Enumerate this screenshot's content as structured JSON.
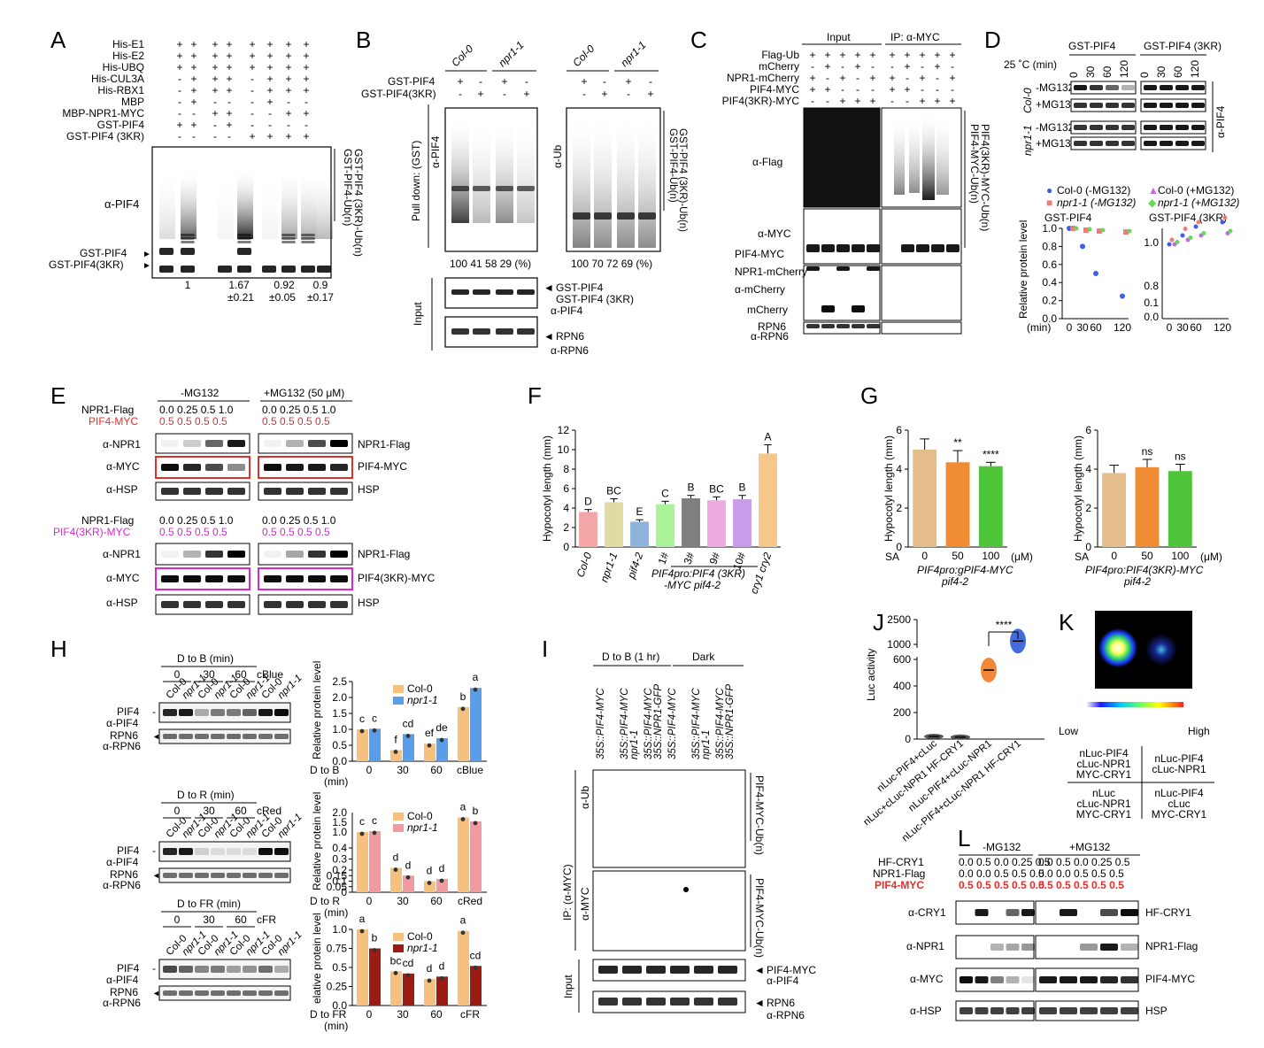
{
  "panels": {
    "A": "A",
    "B": "B",
    "C": "C",
    "D": "D",
    "E": "E",
    "F": "F",
    "G": "G",
    "H": "H",
    "I": "I",
    "J": "J",
    "K": "K",
    "L": "L"
  },
  "A": {
    "rows": [
      "His-E1",
      "His-E2",
      "His-UBQ",
      "His-CUL3A",
      "His-RBX1",
      "MBP",
      "MBP-NPR1-MYC",
      "GST-PIF4",
      "GST-PIF4 (3KR)"
    ],
    "signs": [
      [
        "+",
        "+",
        "+",
        "+",
        "+",
        "+",
        "+",
        "+"
      ],
      [
        "+",
        "+",
        "+",
        "+",
        "+",
        "+",
        "+",
        "+"
      ],
      [
        "+",
        "+",
        "+",
        "+",
        "+",
        "+",
        "+",
        "+"
      ],
      [
        "-",
        "+",
        "+",
        "+",
        "-",
        "+",
        "+",
        "+"
      ],
      [
        "-",
        "+",
        "+",
        "+",
        "-",
        "+",
        "+",
        "+"
      ],
      [
        "-",
        "+",
        "-",
        "-",
        "-",
        "+",
        "-",
        "-"
      ],
      [
        "-",
        "-",
        "+",
        "+",
        "-",
        "-",
        "+",
        "+"
      ],
      [
        "+",
        "+",
        "-",
        "+",
        "-",
        "-",
        "-",
        "-"
      ],
      [
        "-",
        "-",
        "-",
        "-",
        "+",
        "+",
        "+",
        "+"
      ]
    ],
    "ab": "α-PIF4",
    "band1": "GST-PIF4",
    "band2": "GST-PIF4(3KR)",
    "side1": "GST-PIF4-Ub(n)",
    "side2": "GST-PIF4 (3KR)-Ub(n)",
    "q1": "1",
    "q2": "1.67",
    "q2b": "±0.21",
    "q3": "0.92",
    "q3b": "±0.05",
    "q4": "0.9",
    "q4b": "±0.17"
  },
  "B": {
    "col0": "Col-0",
    "npr1": "npr1-1",
    "row1": "GST-PIF4",
    "row2": "GST-PIF4(3KR)",
    "signs1": [
      "+",
      "-",
      "+",
      "-"
    ],
    "signs2": [
      "-",
      "+",
      "-",
      "+"
    ],
    "signs3": [
      "+",
      "-",
      "+",
      "-"
    ],
    "signs4": [
      "-",
      "+",
      "-",
      "+"
    ],
    "pulldown": "Pull down: (GST)",
    "ab1": "α-PIF4",
    "ab2": "α-Ub",
    "side1": "GST-PIF4-Ub(n)",
    "side2": "GST-PIF4 (3KR)-Ub(n)",
    "q1": "100   41   58   29 (%)",
    "q2": "100   70   72   69 (%)",
    "input": "Input",
    "in1": "GST-PIF4",
    "in2": "GST-PIF4 (3KR)",
    "in3": "α-PIF4",
    "in4": "RPN6",
    "in5": "α-RPN6"
  },
  "C": {
    "input": "Input",
    "ip": "IP: α-MYC",
    "rows": [
      "Flag-Ub",
      "mCherry",
      "NPR1-mCherry",
      "PIF4-MYC",
      "PIF4(3KR)-MYC"
    ],
    "signs": [
      [
        "+",
        "+",
        "+",
        "+",
        "+"
      ],
      [
        "-",
        "+",
        "-",
        "+",
        "-"
      ],
      [
        "+",
        "-",
        "+",
        "-",
        "+"
      ],
      [
        "+",
        "+",
        "-",
        "-",
        "-"
      ],
      [
        "-",
        "-",
        "+",
        "+",
        "+"
      ]
    ],
    "flag": "α-Flag",
    "myc": "α-MYC",
    "pif4myc": "PIF4-MYC",
    "npr1m": "NPR1-mCherry",
    "mch": "α-mCherry",
    "mcherry": "mCherry",
    "rpn6": "RPN6",
    "arpn6": "α-RPN6",
    "side1": "PIF4-MYC-Ub(n)",
    "side2": "PIF4(3KR)-MYC-Ub(n)"
  },
  "D": {
    "h1": "GST-PIF4",
    "h2": "GST-PIF4 (3KR)",
    "temp": "25 ˚C  (min)",
    "times": [
      "0",
      "30",
      "60",
      "120"
    ],
    "col0": "Col-0",
    "npr1": "npr1-1",
    "minus": "-MG132",
    "plus": "+MG132",
    "ab": "α-PIF4",
    "leg": [
      "Col-0 (-MG132)",
      "npr1-1 (-MG132)",
      "Col-0 (+MG132)",
      "npr1-1 (+MG132)"
    ],
    "t1": "GST-PIF4",
    "t2": "GST-PIF4 (3KR)",
    "ylabel": "Relative protein level",
    "xunit": "(min)"
  },
  "E": {
    "minus": "-MG132",
    "plus": "+MG132 (50 μM)",
    "npr1flag": "NPR1-Flag",
    "pif4myc": "PIF4-MYC",
    "pif43kr": "PIF4(3KR)-MYC",
    "conc": "0.0 0.25 0.5  1.0",
    "pconc": "0.5  0.5  0.5  0.5",
    "anpr1": "α-NPR1",
    "amyc": "α-MYC",
    "ahsp": "α-HSP",
    "hsp": "HSP"
  },
  "chart_data": [
    {
      "type": "bar",
      "panel": "F",
      "categories": [
        "Col-0",
        "npr1-1",
        "pif4-2",
        "1#",
        "3#",
        "9#",
        "10#",
        "cry1 cry2"
      ],
      "values": [
        3.6,
        4.6,
        2.6,
        4.4,
        5.0,
        4.8,
        4.9,
        9.6
      ],
      "errors": [
        0.25,
        0.35,
        0.2,
        0.3,
        0.3,
        0.35,
        0.4,
        0.9
      ],
      "letters": [
        "D",
        "BC",
        "E",
        "C",
        "B",
        "BC",
        "B",
        "A"
      ],
      "colors": [
        "#f4a6a6",
        "#e0dba2",
        "#8fb4dc",
        "#a8f29a",
        "#7f7f7f",
        "#eeaadf",
        "#c79ce8",
        "#f6c78a"
      ],
      "ylabel": "Hypocotyl length (mm)",
      "ylim": [
        0,
        12
      ],
      "yticks": [
        0,
        2,
        4,
        6,
        8,
        10,
        12
      ],
      "group_label": "PIF4pro:PIF4 (3KR)",
      "group_label2": "-MYC pif4-2"
    },
    {
      "type": "bar",
      "panel": "G-left",
      "categories": [
        "0",
        "50",
        "100"
      ],
      "values": [
        5.0,
        4.35,
        4.15
      ],
      "errors": [
        0.55,
        0.6,
        0.2
      ],
      "sig": [
        "",
        "**",
        "****"
      ],
      "colors": [
        "#e4bd8a",
        "#ef8c34",
        "#4fc63a"
      ],
      "ylabel": "Hypocotyl length (mm)",
      "ylim": [
        0,
        6
      ],
      "yticks": [
        0,
        2,
        4,
        6
      ],
      "xprefix": "SA",
      "xunit": "(μM)",
      "genotype": "PIF4pro:gPIF4-MYC",
      "genotype2": "pif4-2"
    },
    {
      "type": "bar",
      "panel": "G-right",
      "categories": [
        "0",
        "50",
        "100"
      ],
      "values": [
        3.8,
        4.1,
        3.9
      ],
      "errors": [
        0.4,
        0.4,
        0.35
      ],
      "sig": [
        "",
        "ns",
        "ns"
      ],
      "colors": [
        "#e4bd8a",
        "#ef8c34",
        "#4fc63a"
      ],
      "ylabel": "Hypocotyl length (mm)",
      "ylim": [
        0,
        6
      ],
      "yticks": [
        0,
        2,
        4,
        6
      ],
      "xprefix": "SA",
      "xunit": "(μM)",
      "genotype": "PIF4pro:PIF4(3KR)-MYC",
      "genotype2": "pif4-2"
    },
    {
      "type": "bar",
      "panel": "H-blue",
      "categories": [
        "0",
        "30",
        "60",
        "cBlue"
      ],
      "series": [
        {
          "name": "Col-0",
          "values": [
            1.0,
            0.35,
            0.55,
            1.7
          ],
          "color": "#f6c07f"
        },
        {
          "name": "npr1-1",
          "values": [
            1.02,
            0.85,
            0.72,
            2.3
          ],
          "color": "#5a9de8"
        }
      ],
      "letters": [
        [
          "c",
          "c"
        ],
        [
          "f",
          "cd"
        ],
        [
          "ef",
          "de"
        ],
        [
          "b",
          "a"
        ]
      ],
      "ylabel": "Relative protein level",
      "ylim": [
        0,
        2.5
      ],
      "yticks": [
        0,
        0.5,
        1.0,
        1.5,
        2.0,
        2.5
      ],
      "xlabel": "D to B",
      "xunit": "(min)"
    },
    {
      "type": "bar",
      "panel": "H-red",
      "categories": [
        "0",
        "30",
        "60",
        "cRed"
      ],
      "series": [
        {
          "name": "Col-0",
          "values": [
            1.0,
            0.22,
            0.1,
            1.75
          ],
          "color": "#f6c07f"
        },
        {
          "name": "npr1-1",
          "values": [
            1.05,
            0.15,
            0.12,
            1.55
          ],
          "color": "#f19aa0"
        }
      ],
      "letters": [
        [
          "c",
          "c"
        ],
        [
          "d",
          "d"
        ],
        [
          "d",
          "d"
        ],
        [
          "a",
          "b"
        ]
      ],
      "ylabel": "Relative protein level",
      "yticks": [
        0,
        0.05,
        0.1,
        0.15,
        0.2,
        0.3,
        0.4,
        1.0,
        1.5,
        2.0
      ],
      "xlabel": "D to R",
      "xunit": "(min)"
    },
    {
      "type": "bar",
      "panel": "H-farred",
      "categories": [
        "0",
        "30",
        "60",
        "cFR"
      ],
      "series": [
        {
          "name": "Col-0",
          "values": [
            1.0,
            0.45,
            0.35,
            0.98
          ],
          "color": "#f6c07f"
        },
        {
          "name": "npr1-1",
          "values": [
            0.75,
            0.42,
            0.38,
            0.52
          ],
          "color": "#9b1c12"
        }
      ],
      "letters": [
        [
          "a",
          "b"
        ],
        [
          "bc",
          "cd"
        ],
        [
          "d",
          "d"
        ],
        [
          "a",
          "cd"
        ]
      ],
      "ylabel": "elative protein level",
      "ylim": [
        0,
        1.0
      ],
      "yticks": [
        0,
        0.25,
        0.5,
        0.75,
        1.0
      ],
      "xlabel": "D to FR",
      "xunit": "(min)"
    },
    {
      "type": "scatter",
      "panel": "J",
      "categories": [
        "nLuc-PIF4+cLuc",
        "nLuc+cLuc-NPR1 HF-CRY1",
        "nLuc-PIF4+cLuc-NPR1",
        "nLuc-PIF4+cLuc-NPR1 HF-CRY1"
      ],
      "values": [
        20,
        15,
        520,
        1200
      ],
      "ylabel": "Luc activity",
      "yticks": [
        0,
        200,
        400,
        600,
        1000,
        1500,
        2000,
        2500
      ],
      "sig": "****"
    }
  ],
  "H": {
    "dtob": "D to B (min)",
    "dtor": "D to R (min)",
    "dtofr": "D to FR (min)",
    "times": [
      "0",
      "30",
      "60"
    ],
    "cblue": "cBlue",
    "cred": "cRed",
    "cfr": "cFR",
    "col0": "Col-0",
    "npr1": "npr1-1",
    "pif4": "PIF4",
    "apif4": "α-PIF4",
    "rpn6": "RPN6",
    "arpn6": "α-RPN6"
  },
  "I": {
    "dtob": "D to B (1 hr)",
    "dark": "Dark",
    "lanes": [
      "35S::PIF4-MYC",
      "35S::PIF4-MYC npr1-1",
      "35S::PIF4-MYC 35S::NPR1-GFP",
      "35S::PIF4-MYC",
      "35S::PIF4-MYC npr1-1",
      "35S::PIF4-MYC 35S::NPR1-GFP"
    ],
    "ip": "IP: (α-MYC)",
    "aub": "α-Ub",
    "amyc": "α-MYC",
    "side": "PIF4-MYC-Ub(n)",
    "input": "Input",
    "pif4myc": "PIF4-MYC",
    "apif4": "α-PIF4",
    "rpn6": "RPN6",
    "arpn6": "α-RPN6"
  },
  "K": {
    "low": "Low",
    "high": "High",
    "tl": "nLuc-PIF4 cLuc-NPR1 MYC-CRY1",
    "tr": "nLuc-PIF4 cLuc-NPR1",
    "bl": "nLuc cLuc-NPR1 MYC-CRY1",
    "br": "nLuc-PIF4 cLuc MYC-CRY1"
  },
  "L": {
    "minus": "-MG132",
    "plus": "+MG132",
    "hfcry1": "HF-CRY1",
    "npr1flag": "NPR1-Flag",
    "pif4myc": "PIF4-MYC",
    "cry": "0.0 0.5 0.0 0.25 0.5",
    "npr": "0.0 0.0 0.5  0.5  0.5",
    "pif": "0.5 0.5 0.5  0.5  0.5",
    "acry1": "α-CRY1",
    "anpr1": "α-NPR1",
    "amyc": "α-MYC",
    "ahsp": "α-HSP",
    "hsp": "HSP"
  }
}
